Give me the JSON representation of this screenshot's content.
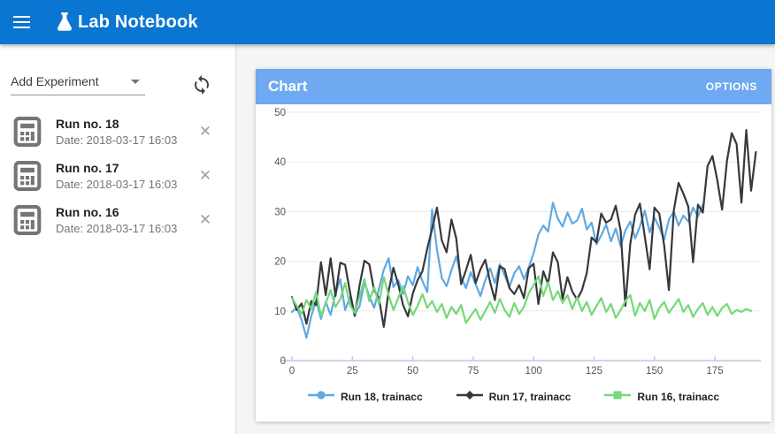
{
  "app_bar": {
    "title": "Lab Notebook",
    "bg": "#0b76d1"
  },
  "sidebar": {
    "add_experiment_label": "Add Experiment",
    "items": [
      {
        "name": "Run no. 18",
        "date": "Date: 2018-03-17 16:03"
      },
      {
        "name": "Run no. 17",
        "date": "Date: 2018-03-17 16:03"
      },
      {
        "name": "Run no. 16",
        "date": "Date: 2018-03-17 16:03"
      }
    ]
  },
  "chart_card": {
    "title": "Chart",
    "options_label": "OPTIONS",
    "header_bg": "#6fa9f1"
  },
  "chart_data": {
    "type": "line",
    "title": "Chart",
    "xlabel": "",
    "ylabel": "",
    "xlim": [
      0,
      194
    ],
    "ylim": [
      0,
      50
    ],
    "x_ticks": [
      0,
      25,
      50,
      75,
      100,
      125,
      150,
      175
    ],
    "y_ticks": [
      0,
      10,
      20,
      30,
      40,
      50
    ],
    "grid": "horizontal",
    "legend_position": "bottom",
    "axis_color": "#bccbde",
    "grid_color": "#eaeaea",
    "tick_label_color": "#555555",
    "x_step": 2,
    "series": [
      {
        "name": "Run 18, trainacc",
        "color": "#5fa9e3",
        "marker": "circle",
        "x_start": 0,
        "values": [
          9.8,
          10.6,
          8.2,
          4.6,
          9,
          12.1,
          8.4,
          11.8,
          9.2,
          13.6,
          16.4,
          10.2,
          12.8,
          9.4,
          11,
          15.8,
          13,
          10.6,
          14.4,
          18.3,
          20.6,
          14.8,
          16.2,
          13.4,
          17,
          15.2,
          18.8,
          16,
          13.8,
          30.4,
          22.4,
          16.6,
          15,
          18.2,
          21,
          16.8,
          14.6,
          17.8,
          15.4,
          13,
          16.2,
          18.6,
          15.6,
          19.4,
          17.2,
          14.8,
          17.6,
          19,
          16.4,
          18.8,
          21.6,
          25.4,
          27.2,
          26,
          31.8,
          28.6,
          27,
          29.8,
          27.6,
          28.2,
          30.6,
          26.4,
          27.8,
          23.4,
          25.2,
          27.4,
          24,
          26.6,
          23,
          26.2,
          28,
          24.6,
          27,
          30.2,
          25.8,
          28.8,
          26.8,
          24.4,
          28.4,
          30,
          27.2,
          29.2,
          28,
          30.8,
          29,
          31.4
        ]
      },
      {
        "name": "Run 17, trainacc",
        "color": "#37373d",
        "marker": "diamond",
        "x_start": 0,
        "values": [
          12.8,
          10.2,
          11.5,
          7.4,
          12,
          11.2,
          19.8,
          13.2,
          20.6,
          13,
          19.7,
          19.3,
          13.8,
          9,
          15.2,
          20.1,
          19.4,
          14.1,
          12.6,
          6.8,
          14,
          18.7,
          15.3,
          11.2,
          8.9,
          13.5,
          16.2,
          18,
          22.6,
          26.5,
          30.8,
          24.2,
          21.8,
          28.4,
          24.6,
          15.4,
          18.2,
          21.3,
          15.6,
          18.4,
          20.3,
          15.8,
          12.2,
          19,
          18.4,
          14.6,
          13.4,
          15.2,
          12.6,
          18.6,
          19.5,
          11.4,
          18,
          15.4,
          21.8,
          19.8,
          12.4,
          16.8,
          13.9,
          12.3,
          14.2,
          17.6,
          24.8,
          23.8,
          29.6,
          27.8,
          28.4,
          31.2,
          26.2,
          11,
          23.5,
          29.4,
          31.6,
          25,
          18.4,
          30.8,
          29.6,
          23.2,
          14.2,
          30.2,
          35.8,
          33.6,
          31,
          19.8,
          31.4,
          29.8,
          39.2,
          41.2,
          36.4,
          30.4,
          40.2,
          45.8,
          43.6,
          31.8,
          46.4,
          34.2,
          42
        ]
      },
      {
        "name": "Run 16, trainacc",
        "color": "#74d978",
        "marker": "square",
        "x_start": 0,
        "values": [
          12.6,
          11,
          9.4,
          12.2,
          10.4,
          13.8,
          9,
          11.6,
          14.2,
          10.8,
          12.4,
          15.6,
          11.2,
          9.6,
          13,
          16.4,
          12,
          14.8,
          11.4,
          16.8,
          13.2,
          10.2,
          12.6,
          15,
          11.8,
          9.2,
          11,
          13.4,
          10.6,
          12,
          9.8,
          11.4,
          8.6,
          10.8,
          9.4,
          11.2,
          7.6,
          9,
          10.4,
          8.2,
          10,
          11.8,
          9.6,
          12.4,
          10.2,
          8.8,
          11.6,
          9.4,
          10.8,
          13.6,
          15.2,
          17,
          13,
          15.8,
          12.2,
          14,
          11.6,
          13.2,
          10.4,
          12.8,
          10,
          11.8,
          9.2,
          11,
          12.6,
          9.8,
          11.4,
          8.6,
          10.2,
          12,
          13.2,
          9,
          11.6,
          10,
          12.2,
          8.4,
          10.6,
          11.8,
          9.6,
          11,
          12.4,
          9.8,
          11.2,
          8.8,
          10.4,
          11.6,
          9.2,
          10.8,
          9,
          10.6,
          11.4,
          9.4,
          10.2,
          9.8,
          10.4,
          10
        ]
      }
    ]
  }
}
